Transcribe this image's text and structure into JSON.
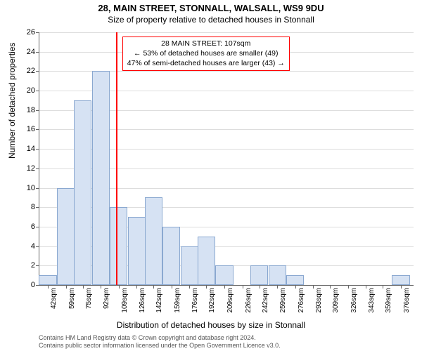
{
  "title": "28, MAIN STREET, STONNALL, WALSALL, WS9 9DU",
  "subtitle": "Size of property relative to detached houses in Stonnall",
  "chart": {
    "type": "histogram",
    "background_color": "#ffffff",
    "grid_color": "#dddddd",
    "axis_color": "#666666",
    "bar_fill": "#d6e2f3",
    "bar_stroke": "#8aa8d0",
    "marker_color": "#ff0000",
    "marker_x": 107,
    "y_max": 26,
    "y_ticks": [
      0,
      2,
      4,
      6,
      8,
      10,
      12,
      14,
      16,
      18,
      20,
      22,
      24,
      26
    ],
    "x_min": 34,
    "x_max": 388,
    "x_ticks": [
      42,
      59,
      75,
      92,
      109,
      126,
      142,
      159,
      176,
      192,
      209,
      226,
      242,
      259,
      276,
      293,
      309,
      326,
      343,
      359,
      376
    ],
    "x_tick_suffix": "sqm",
    "bars": [
      {
        "x": 42,
        "count": 1
      },
      {
        "x": 59,
        "count": 10
      },
      {
        "x": 75,
        "count": 19
      },
      {
        "x": 92,
        "count": 22
      },
      {
        "x": 109,
        "count": 8
      },
      {
        "x": 126,
        "count": 7
      },
      {
        "x": 142,
        "count": 9
      },
      {
        "x": 159,
        "count": 6
      },
      {
        "x": 176,
        "count": 4
      },
      {
        "x": 192,
        "count": 5
      },
      {
        "x": 209,
        "count": 2
      },
      {
        "x": 226,
        "count": 0
      },
      {
        "x": 242,
        "count": 2
      },
      {
        "x": 259,
        "count": 2
      },
      {
        "x": 276,
        "count": 1
      },
      {
        "x": 293,
        "count": 0
      },
      {
        "x": 309,
        "count": 0
      },
      {
        "x": 326,
        "count": 0
      },
      {
        "x": 343,
        "count": 0
      },
      {
        "x": 359,
        "count": 0
      },
      {
        "x": 376,
        "count": 1
      }
    ],
    "bar_width_units": 16.7,
    "x_axis_label": "Distribution of detached houses by size in Stonnall",
    "y_axis_label": "Number of detached properties"
  },
  "annotation": {
    "border_color": "#ff0000",
    "line1": "28 MAIN STREET: 107sqm",
    "line2": "← 53% of detached houses are smaller (49)",
    "line3": "47% of semi-detached houses are larger (43) →"
  },
  "footer": {
    "line1": "Contains HM Land Registry data © Crown copyright and database right 2024.",
    "line2": "Contains public sector information licensed under the Open Government Licence v3.0."
  }
}
